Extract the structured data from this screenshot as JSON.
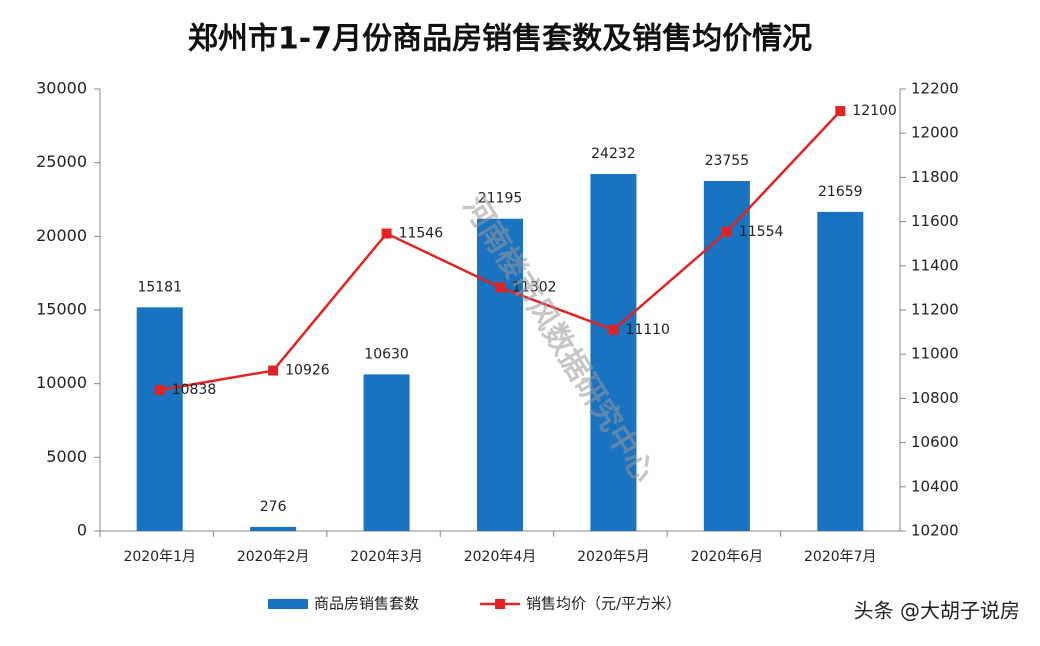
{
  "chart_data": {
    "type": "bar",
    "title": "郑州市1-7月份商品房销售套数及销售均价情况",
    "categories": [
      "2020年1月",
      "2020年2月",
      "2020年3月",
      "2020年4月",
      "2020年5月",
      "2020年6月",
      "2020年7月"
    ],
    "series": [
      {
        "name": "商品房销售套数",
        "type": "bar",
        "color": "#1a73c1",
        "values": [
          15181,
          276,
          10630,
          21195,
          24232,
          23755,
          21659
        ]
      },
      {
        "name": "销售均价（元/平方米）",
        "type": "line",
        "axis": "y2",
        "color": "#e02424",
        "values": [
          10838,
          10926,
          11546,
          11302,
          11110,
          11554,
          12100
        ]
      }
    ],
    "ylim": [
      0,
      30000
    ],
    "yticks": [
      0,
      5000,
      10000,
      15000,
      20000,
      25000,
      30000
    ],
    "y2lim": [
      10200,
      12200
    ],
    "y2ticks": [
      10200,
      10400,
      10600,
      10800,
      11000,
      11200,
      11400,
      11600,
      11800,
      12000,
      12200
    ],
    "legend": "bottom",
    "watermark": "河南楼市风数据研究中心",
    "credit": "头条 @大胡子说房"
  }
}
